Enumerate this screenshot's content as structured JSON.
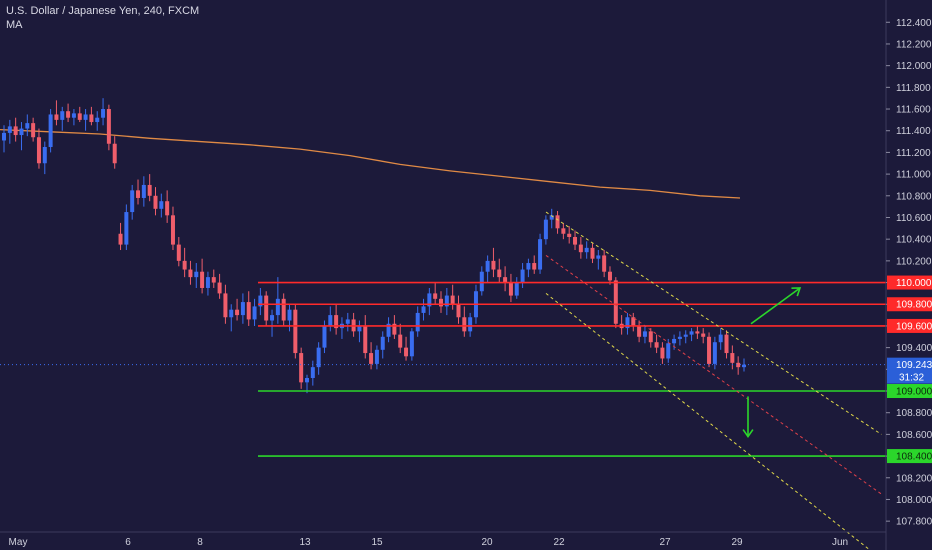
{
  "header": {
    "title": "U.S. Dollar / Japanese Yen, 240, FXCM",
    "indicator": "MA"
  },
  "price_tag": {
    "price": "109.243",
    "countdown": "31:32"
  },
  "colors": {
    "background": "#1c1a3a",
    "bull_candle": "#3a6df0",
    "bear_candle": "#ef5e6b",
    "ma_line": "#e08a45",
    "resistance": "#ff2a2a",
    "support": "#2bd62b",
    "channel": "#e0d84a",
    "channel_mid": "#e0404a",
    "arrow": "#2bd62b"
  },
  "chart_data": {
    "type": "candlestick",
    "title": "U.S. Dollar / Japanese Yen, 240, FXCM",
    "ylim": [
      107.7,
      112.55
    ],
    "y_ticks": [
      "112.400",
      "112.200",
      "112.000",
      "111.800",
      "111.600",
      "111.400",
      "111.200",
      "111.000",
      "110.800",
      "110.600",
      "110.400",
      "110.200",
      "110.000",
      "109.800",
      "109.600",
      "109.400",
      "109.200",
      "109.000",
      "108.800",
      "108.600",
      "108.400",
      "108.200",
      "108.000",
      "107.800"
    ],
    "x_ticks": [
      "May",
      "6",
      "8",
      "13",
      "15",
      "20",
      "22",
      "27",
      "29",
      "Jun"
    ],
    "levels": [
      {
        "price": 110.0,
        "label": "110.000",
        "kind": "resistance"
      },
      {
        "price": 109.8,
        "label": "109.800",
        "kind": "resistance"
      },
      {
        "price": 109.6,
        "label": "109.600",
        "kind": "resistance"
      },
      {
        "price": 109.0,
        "label": "109.000",
        "kind": "support"
      },
      {
        "price": 108.4,
        "label": "108.400",
        "kind": "support"
      }
    ],
    "ma_series": {
      "name": "MA",
      "points": [
        [
          0,
          111.41
        ],
        [
          50,
          111.39
        ],
        [
          100,
          111.37
        ],
        [
          150,
          111.33
        ],
        [
          200,
          111.3
        ],
        [
          250,
          111.27
        ],
        [
          300,
          111.23
        ],
        [
          350,
          111.17
        ],
        [
          400,
          111.09
        ],
        [
          450,
          111.03
        ],
        [
          500,
          110.98
        ],
        [
          550,
          110.93
        ],
        [
          600,
          110.88
        ],
        [
          650,
          110.85
        ],
        [
          700,
          110.8
        ],
        [
          740,
          110.78
        ]
      ]
    },
    "candles": [
      {
        "o": 111.31,
        "h": 111.45,
        "l": 111.2,
        "c": 111.38
      },
      {
        "o": 111.38,
        "h": 111.5,
        "l": 111.28,
        "c": 111.44
      },
      {
        "o": 111.44,
        "h": 111.52,
        "l": 111.3,
        "c": 111.36
      },
      {
        "o": 111.36,
        "h": 111.48,
        "l": 111.22,
        "c": 111.42
      },
      {
        "o": 111.42,
        "h": 111.55,
        "l": 111.35,
        "c": 111.47
      },
      {
        "o": 111.47,
        "h": 111.52,
        "l": 111.3,
        "c": 111.34
      },
      {
        "o": 111.34,
        "h": 111.42,
        "l": 111.05,
        "c": 111.1
      },
      {
        "o": 111.1,
        "h": 111.3,
        "l": 111.0,
        "c": 111.25
      },
      {
        "o": 111.25,
        "h": 111.6,
        "l": 111.2,
        "c": 111.55
      },
      {
        "o": 111.55,
        "h": 111.68,
        "l": 111.45,
        "c": 111.5
      },
      {
        "o": 111.5,
        "h": 111.62,
        "l": 111.4,
        "c": 111.58
      },
      {
        "o": 111.58,
        "h": 111.65,
        "l": 111.48,
        "c": 111.52
      },
      {
        "o": 111.52,
        "h": 111.6,
        "l": 111.45,
        "c": 111.56
      },
      {
        "o": 111.56,
        "h": 111.62,
        "l": 111.48,
        "c": 111.5
      },
      {
        "o": 111.5,
        "h": 111.6,
        "l": 111.4,
        "c": 111.55
      },
      {
        "o": 111.55,
        "h": 111.62,
        "l": 111.45,
        "c": 111.48
      },
      {
        "o": 111.48,
        "h": 111.58,
        "l": 111.4,
        "c": 111.52
      },
      {
        "o": 111.52,
        "h": 111.7,
        "l": 111.45,
        "c": 111.6
      },
      {
        "o": 111.6,
        "h": 111.64,
        "l": 111.22,
        "c": 111.28
      },
      {
        "o": 111.28,
        "h": 111.35,
        "l": 111.05,
        "c": 111.1
      },
      {
        "o": 110.45,
        "h": 110.55,
        "l": 110.3,
        "c": 110.35
      },
      {
        "o": 110.35,
        "h": 110.72,
        "l": 110.3,
        "c": 110.65
      },
      {
        "o": 110.65,
        "h": 110.9,
        "l": 110.58,
        "c": 110.85
      },
      {
        "o": 110.85,
        "h": 110.95,
        "l": 110.72,
        "c": 110.78
      },
      {
        "o": 110.78,
        "h": 110.98,
        "l": 110.7,
        "c": 110.9
      },
      {
        "o": 110.9,
        "h": 111.0,
        "l": 110.75,
        "c": 110.8
      },
      {
        "o": 110.8,
        "h": 110.88,
        "l": 110.62,
        "c": 110.68
      },
      {
        "o": 110.68,
        "h": 110.82,
        "l": 110.6,
        "c": 110.75
      },
      {
        "o": 110.75,
        "h": 110.85,
        "l": 110.55,
        "c": 110.62
      },
      {
        "o": 110.62,
        "h": 110.7,
        "l": 110.3,
        "c": 110.35
      },
      {
        "o": 110.35,
        "h": 110.42,
        "l": 110.15,
        "c": 110.2
      },
      {
        "o": 110.2,
        "h": 110.32,
        "l": 110.05,
        "c": 110.12
      },
      {
        "o": 110.12,
        "h": 110.2,
        "l": 109.98,
        "c": 110.05
      },
      {
        "o": 110.05,
        "h": 110.18,
        "l": 109.95,
        "c": 110.1
      },
      {
        "o": 110.1,
        "h": 110.22,
        "l": 109.9,
        "c": 109.95
      },
      {
        "o": 109.95,
        "h": 110.1,
        "l": 109.88,
        "c": 110.05
      },
      {
        "o": 110.05,
        "h": 110.12,
        "l": 109.95,
        "c": 110.0
      },
      {
        "o": 110.0,
        "h": 110.08,
        "l": 109.85,
        "c": 109.9
      },
      {
        "o": 109.9,
        "h": 109.98,
        "l": 109.62,
        "c": 109.68
      },
      {
        "o": 109.68,
        "h": 109.8,
        "l": 109.55,
        "c": 109.75
      },
      {
        "o": 109.75,
        "h": 109.85,
        "l": 109.65,
        "c": 109.7
      },
      {
        "o": 109.7,
        "h": 109.9,
        "l": 109.62,
        "c": 109.82
      },
      {
        "o": 109.82,
        "h": 109.92,
        "l": 109.6,
        "c": 109.66
      },
      {
        "o": 109.66,
        "h": 109.85,
        "l": 109.6,
        "c": 109.78
      },
      {
        "o": 109.78,
        "h": 109.95,
        "l": 109.7,
        "c": 109.88
      },
      {
        "o": 109.88,
        "h": 109.92,
        "l": 109.6,
        "c": 109.65
      },
      {
        "o": 109.65,
        "h": 109.75,
        "l": 109.5,
        "c": 109.7
      },
      {
        "o": 109.7,
        "h": 110.05,
        "l": 109.62,
        "c": 109.85
      },
      {
        "o": 109.85,
        "h": 109.9,
        "l": 109.6,
        "c": 109.65
      },
      {
        "o": 109.65,
        "h": 109.8,
        "l": 109.55,
        "c": 109.75
      },
      {
        "o": 109.75,
        "h": 109.8,
        "l": 109.3,
        "c": 109.35
      },
      {
        "o": 109.35,
        "h": 109.4,
        "l": 109.02,
        "c": 109.08
      },
      {
        "o": 109.08,
        "h": 109.15,
        "l": 108.98,
        "c": 109.12
      },
      {
        "o": 109.12,
        "h": 109.28,
        "l": 109.05,
        "c": 109.22
      },
      {
        "o": 109.22,
        "h": 109.45,
        "l": 109.15,
        "c": 109.4
      },
      {
        "o": 109.4,
        "h": 109.65,
        "l": 109.35,
        "c": 109.6
      },
      {
        "o": 109.6,
        "h": 109.78,
        "l": 109.55,
        "c": 109.7
      },
      {
        "o": 109.7,
        "h": 109.8,
        "l": 109.52,
        "c": 109.58
      },
      {
        "o": 109.58,
        "h": 109.68,
        "l": 109.48,
        "c": 109.62
      },
      {
        "o": 109.62,
        "h": 109.72,
        "l": 109.55,
        "c": 109.66
      },
      {
        "o": 109.66,
        "h": 109.72,
        "l": 109.5,
        "c": 109.55
      },
      {
        "o": 109.55,
        "h": 109.65,
        "l": 109.45,
        "c": 109.6
      },
      {
        "o": 109.6,
        "h": 109.7,
        "l": 109.3,
        "c": 109.35
      },
      {
        "o": 109.35,
        "h": 109.45,
        "l": 109.2,
        "c": 109.25
      },
      {
        "o": 109.25,
        "h": 109.42,
        "l": 109.2,
        "c": 109.38
      },
      {
        "o": 109.38,
        "h": 109.55,
        "l": 109.3,
        "c": 109.5
      },
      {
        "o": 109.5,
        "h": 109.68,
        "l": 109.45,
        "c": 109.62
      },
      {
        "o": 109.62,
        "h": 109.7,
        "l": 109.48,
        "c": 109.52
      },
      {
        "o": 109.52,
        "h": 109.62,
        "l": 109.35,
        "c": 109.4
      },
      {
        "o": 109.4,
        "h": 109.5,
        "l": 109.28,
        "c": 109.32
      },
      {
        "o": 109.32,
        "h": 109.58,
        "l": 109.28,
        "c": 109.55
      },
      {
        "o": 109.55,
        "h": 109.78,
        "l": 109.5,
        "c": 109.72
      },
      {
        "o": 109.72,
        "h": 109.85,
        "l": 109.65,
        "c": 109.78
      },
      {
        "o": 109.78,
        "h": 109.95,
        "l": 109.7,
        "c": 109.9
      },
      {
        "o": 109.9,
        "h": 110.0,
        "l": 109.8,
        "c": 109.85
      },
      {
        "o": 109.85,
        "h": 109.92,
        "l": 109.72,
        "c": 109.78
      },
      {
        "o": 109.78,
        "h": 109.95,
        "l": 109.7,
        "c": 109.88
      },
      {
        "o": 109.88,
        "h": 109.98,
        "l": 109.75,
        "c": 109.8
      },
      {
        "o": 109.8,
        "h": 109.88,
        "l": 109.62,
        "c": 109.68
      },
      {
        "o": 109.68,
        "h": 109.78,
        "l": 109.5,
        "c": 109.55
      },
      {
        "o": 109.55,
        "h": 109.72,
        "l": 109.5,
        "c": 109.68
      },
      {
        "o": 109.68,
        "h": 109.98,
        "l": 109.62,
        "c": 109.92
      },
      {
        "o": 109.92,
        "h": 110.15,
        "l": 109.88,
        "c": 110.1
      },
      {
        "o": 110.1,
        "h": 110.25,
        "l": 110.0,
        "c": 110.2
      },
      {
        "o": 110.2,
        "h": 110.32,
        "l": 110.05,
        "c": 110.12
      },
      {
        "o": 110.12,
        "h": 110.22,
        "l": 110.0,
        "c": 110.05
      },
      {
        "o": 110.05,
        "h": 110.15,
        "l": 109.92,
        "c": 110.0
      },
      {
        "o": 110.0,
        "h": 110.08,
        "l": 109.82,
        "c": 109.88
      },
      {
        "o": 109.88,
        "h": 110.05,
        "l": 109.85,
        "c": 110.0
      },
      {
        "o": 110.0,
        "h": 110.18,
        "l": 109.95,
        "c": 110.12
      },
      {
        "o": 110.12,
        "h": 110.22,
        "l": 110.05,
        "c": 110.18
      },
      {
        "o": 110.18,
        "h": 110.25,
        "l": 110.08,
        "c": 110.12
      },
      {
        "o": 110.12,
        "h": 110.45,
        "l": 110.08,
        "c": 110.4
      },
      {
        "o": 110.4,
        "h": 110.62,
        "l": 110.35,
        "c": 110.58
      },
      {
        "o": 110.58,
        "h": 110.68,
        "l": 110.5,
        "c": 110.62
      },
      {
        "o": 110.62,
        "h": 110.66,
        "l": 110.45,
        "c": 110.5
      },
      {
        "o": 110.5,
        "h": 110.55,
        "l": 110.4,
        "c": 110.45
      },
      {
        "o": 110.45,
        "h": 110.52,
        "l": 110.36,
        "c": 110.42
      },
      {
        "o": 110.42,
        "h": 110.48,
        "l": 110.3,
        "c": 110.35
      },
      {
        "o": 110.35,
        "h": 110.42,
        "l": 110.22,
        "c": 110.28
      },
      {
        "o": 110.28,
        "h": 110.38,
        "l": 110.22,
        "c": 110.32
      },
      {
        "o": 110.32,
        "h": 110.36,
        "l": 110.18,
        "c": 110.22
      },
      {
        "o": 110.22,
        "h": 110.3,
        "l": 110.12,
        "c": 110.25
      },
      {
        "o": 110.25,
        "h": 110.3,
        "l": 110.05,
        "c": 110.1
      },
      {
        "o": 110.1,
        "h": 110.15,
        "l": 109.98,
        "c": 110.02
      },
      {
        "o": 110.02,
        "h": 110.05,
        "l": 109.58,
        "c": 109.62
      },
      {
        "o": 109.62,
        "h": 109.7,
        "l": 109.52,
        "c": 109.58
      },
      {
        "o": 109.58,
        "h": 109.72,
        "l": 109.52,
        "c": 109.68
      },
      {
        "o": 109.68,
        "h": 109.72,
        "l": 109.55,
        "c": 109.6
      },
      {
        "o": 109.6,
        "h": 109.65,
        "l": 109.45,
        "c": 109.5
      },
      {
        "o": 109.5,
        "h": 109.6,
        "l": 109.44,
        "c": 109.55
      },
      {
        "o": 109.55,
        "h": 109.58,
        "l": 109.4,
        "c": 109.45
      },
      {
        "o": 109.45,
        "h": 109.52,
        "l": 109.35,
        "c": 109.4
      },
      {
        "o": 109.4,
        "h": 109.45,
        "l": 109.25,
        "c": 109.3
      },
      {
        "o": 109.3,
        "h": 109.48,
        "l": 109.26,
        "c": 109.44
      },
      {
        "o": 109.44,
        "h": 109.52,
        "l": 109.38,
        "c": 109.48
      },
      {
        "o": 109.48,
        "h": 109.55,
        "l": 109.42,
        "c": 109.5
      },
      {
        "o": 109.5,
        "h": 109.56,
        "l": 109.44,
        "c": 109.52
      },
      {
        "o": 109.52,
        "h": 109.58,
        "l": 109.46,
        "c": 109.55
      },
      {
        "o": 109.55,
        "h": 109.6,
        "l": 109.48,
        "c": 109.53
      },
      {
        "o": 109.53,
        "h": 109.58,
        "l": 109.44,
        "c": 109.5
      },
      {
        "o": 109.5,
        "h": 109.54,
        "l": 109.22,
        "c": 109.25
      },
      {
        "o": 109.25,
        "h": 109.5,
        "l": 109.2,
        "c": 109.45
      },
      {
        "o": 109.45,
        "h": 109.58,
        "l": 109.38,
        "c": 109.52
      },
      {
        "o": 109.52,
        "h": 109.56,
        "l": 109.3,
        "c": 109.35
      },
      {
        "o": 109.35,
        "h": 109.42,
        "l": 109.2,
        "c": 109.26
      },
      {
        "o": 109.26,
        "h": 109.32,
        "l": 109.15,
        "c": 109.22
      },
      {
        "o": 109.22,
        "h": 109.3,
        "l": 109.18,
        "c": 109.243
      }
    ],
    "channel": {
      "upper": [
        [
          20.5,
          110.65
        ],
        [
          42,
          108.6
        ]
      ],
      "mid": [
        [
          20.5,
          110.25
        ],
        [
          42,
          108.05
        ]
      ],
      "lower": [
        [
          20.5,
          109.9
        ],
        [
          42,
          107.45
        ]
      ]
    },
    "arrows": [
      {
        "direction": "up",
        "from": 109.62,
        "to": 109.95
      },
      {
        "direction": "down",
        "from": 108.95,
        "to": 108.58
      }
    ]
  }
}
